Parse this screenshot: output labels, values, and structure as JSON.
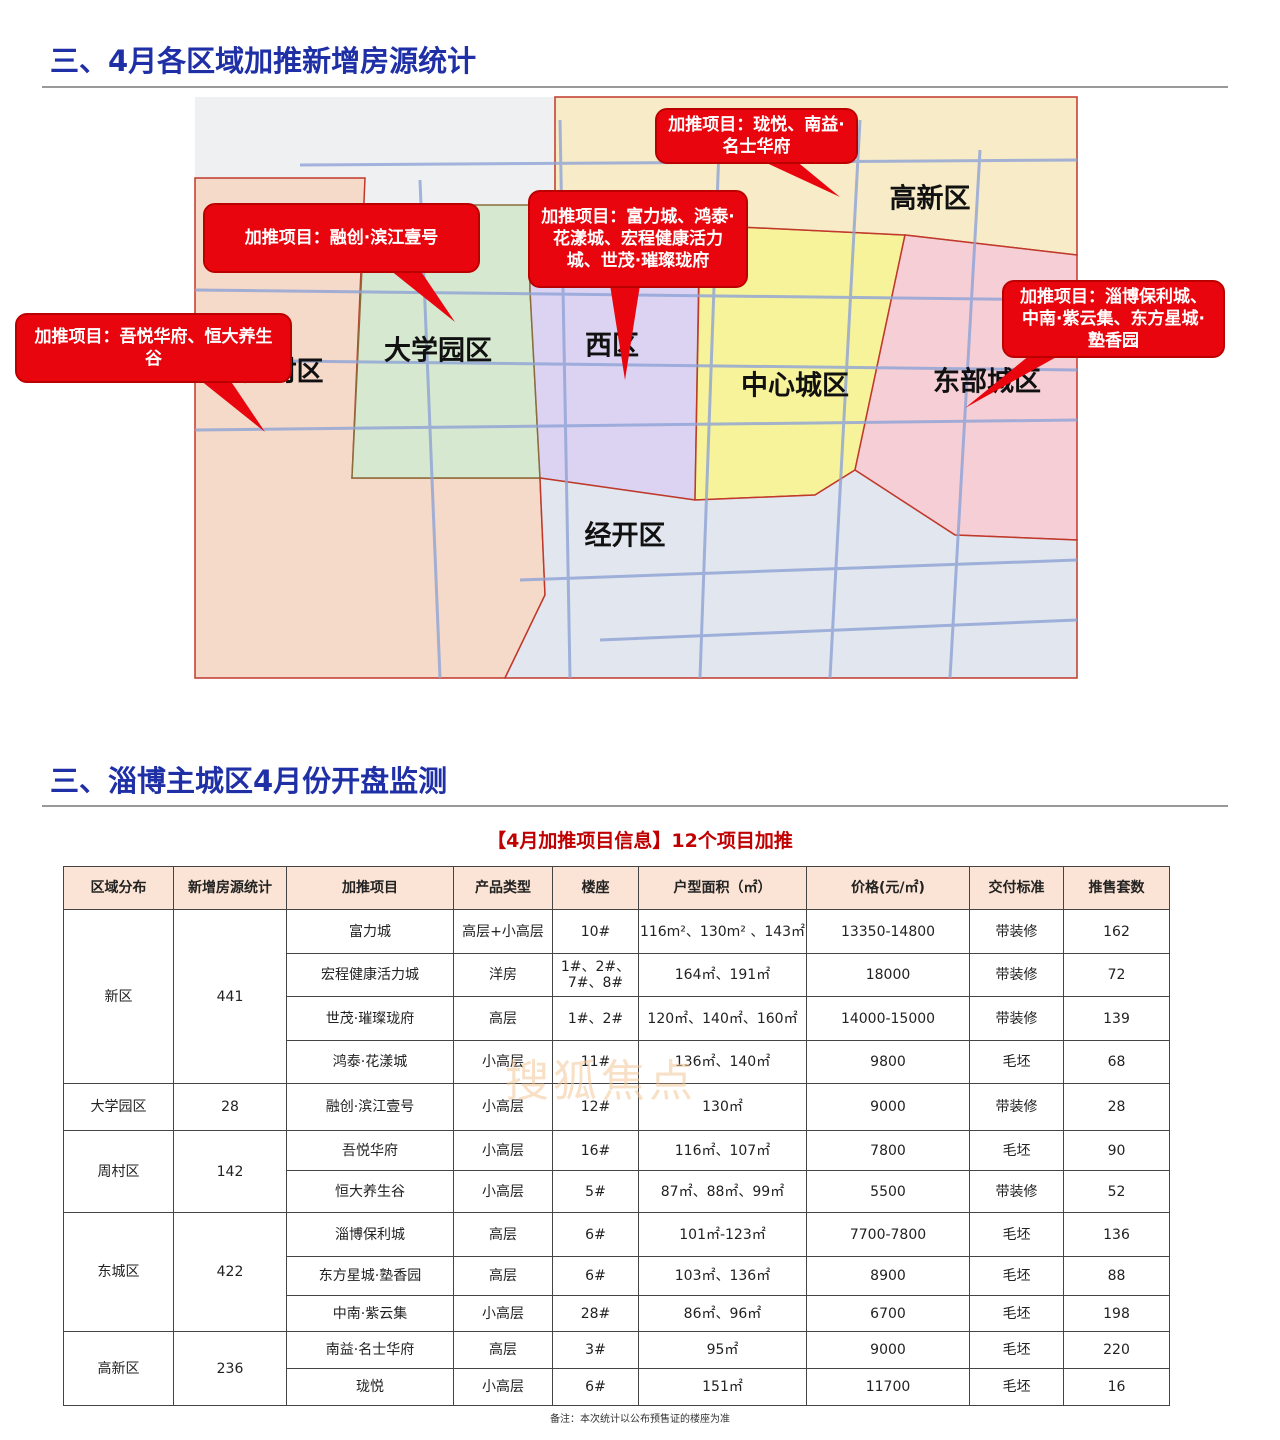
{
  "section1": {
    "title": "三、4月各区域加推新增房源统计"
  },
  "map": {
    "districts": [
      "周村区",
      "大学园区",
      "西区",
      "中心城区",
      "高新区",
      "东部城区",
      "经开区"
    ],
    "callouts": [
      "加推项目：珑悦、南益·名士华府",
      "加推项目：富力城、鸿泰·花漾城、宏程健康活力城、世茂·璀璨珑府",
      "加推项目：融创·滨江壹号",
      "加推项目：吾悦华府、恒大养生谷",
      "加推项目：淄博保利城、中南·紫云集、东方星城·塾香园"
    ]
  },
  "section2": {
    "title": "三、淄博主城区4月份开盘监测"
  },
  "table": {
    "caption": "【4月加推项目信息】12个项目加推",
    "headers": [
      "区域分布",
      "新增房源统计",
      "加推项目",
      "产品类型",
      "楼座",
      "户型面积（㎡）",
      "价格(元/㎡)",
      "交付标准",
      "推售套数"
    ],
    "groups": [
      {
        "district": "新区",
        "count": 441,
        "projects": [
          [
            "富力城",
            "高层+小高层",
            "10#",
            "116m²、130m² 、143㎡",
            "13350-14800",
            "带装修",
            162
          ],
          [
            "宏程健康活力城",
            "洋房",
            "1#、2#、7#、8#",
            "164㎡、191㎡",
            18000,
            "带装修",
            72
          ],
          [
            "世茂·璀璨珑府",
            "高层",
            "1#、2#",
            "120㎡、140㎡、160㎡",
            "14000-15000",
            "带装修",
            139
          ],
          [
            "鸿泰·花漾城",
            "小高层",
            "11#",
            "136㎡、140㎡",
            9800,
            "毛坯",
            68
          ]
        ]
      },
      {
        "district": "大学园区",
        "count": 28,
        "projects": [
          [
            "融创·滨江壹号",
            "小高层",
            "12#",
            "130㎡",
            9000,
            "带装修",
            28
          ]
        ]
      },
      {
        "district": "周村区",
        "count": 142,
        "projects": [
          [
            "吾悦华府",
            "小高层",
            "16#",
            "116㎡、107㎡",
            7800,
            "毛坯",
            90
          ],
          [
            "恒大养生谷",
            "小高层",
            "5#",
            "87㎡、88㎡、99㎡",
            5500,
            "带装修",
            52
          ]
        ]
      },
      {
        "district": "东城区",
        "count": 422,
        "projects": [
          [
            "淄博保利城",
            "高层",
            "6#",
            "101㎡-123㎡",
            "7700-7800",
            "毛坯",
            136
          ],
          [
            "东方星城·塾香园",
            "高层",
            "6#",
            "103㎡、136㎡",
            8900,
            "毛坯",
            88
          ],
          [
            "中南·紫云集",
            "小高层",
            "28#",
            "86㎡、96㎡",
            6700,
            "毛坯",
            198
          ]
        ]
      },
      {
        "district": "高新区",
        "count": 236,
        "projects": [
          [
            "南益·名士华府",
            "高层",
            "3#",
            "95㎡",
            9000,
            "毛坯",
            220
          ],
          [
            "珑悦",
            "小高层",
            "6#",
            "151㎡",
            11700,
            "毛坯",
            16
          ]
        ]
      }
    ],
    "note": "备注：本次统计以公布预售证的楼座为准",
    "watermark": "搜狐焦点"
  }
}
